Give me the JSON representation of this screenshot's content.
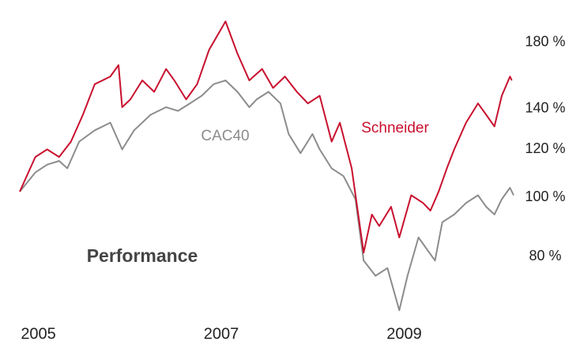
{
  "chart_data": {
    "type": "line",
    "title": "Performance",
    "y_log": true,
    "grid": false,
    "xlim": [
      2004.9,
      2010.3
    ],
    "xticks": [
      2005,
      2007,
      2009
    ],
    "ylim": [
      64,
      205
    ],
    "yticks": [
      {
        "value": 80,
        "label": "80 %"
      },
      {
        "value": 100,
        "label": "100 %"
      },
      {
        "value": 120,
        "label": "120 %"
      },
      {
        "value": 140,
        "label": "140 %"
      },
      {
        "value": 180,
        "label": "180 %"
      }
    ],
    "series": [
      {
        "name": "Schneider",
        "color": "#c8102e",
        "x": [
          2004.9,
          2005.07,
          2005.2,
          2005.33,
          2005.46,
          2005.59,
          2005.72,
          2005.89,
          2005.98,
          2006.02,
          2006.11,
          2006.24,
          2006.37,
          2006.5,
          2006.59,
          2006.72,
          2006.84,
          2006.97,
          2007.15,
          2007.28,
          2007.41,
          2007.55,
          2007.67,
          2007.8,
          2007.93,
          2008.05,
          2008.18,
          2008.31,
          2008.4,
          2008.53,
          2008.66,
          2008.75,
          2008.83,
          2008.96,
          2009.05,
          2009.18,
          2009.31,
          2009.39,
          2009.48,
          2009.57,
          2009.65,
          2009.78,
          2009.91,
          2010.0,
          2010.09,
          2010.17,
          2010.26,
          2010.28
        ],
        "values": [
          102.3,
          116.6,
          120.0,
          116.6,
          123.6,
          136.8,
          153.6,
          158.1,
          165.1,
          140.8,
          145.0,
          155.8,
          149.2,
          162.7,
          155.8,
          145.0,
          153.6,
          174.9,
          194.8,
          172.4,
          155.8,
          162.7,
          151.4,
          158.1,
          149.2,
          142.8,
          147.0,
          123.6,
          132.8,
          111.7,
          81.2,
          93.8,
          89.8,
          96.6,
          86.0,
          100.9,
          98.0,
          95.2,
          102.3,
          111.7,
          120.0,
          132.8,
          142.8,
          136.8,
          130.9,
          147.0,
          158.1,
          155.8
        ]
      },
      {
        "name": "CAC40",
        "color": "#8c8c8c",
        "x": [
          2004.9,
          2005.07,
          2005.2,
          2005.33,
          2005.42,
          2005.55,
          2005.72,
          2005.89,
          2006.02,
          2006.15,
          2006.33,
          2006.5,
          2006.63,
          2006.76,
          2006.89,
          2007.02,
          2007.15,
          2007.28,
          2007.41,
          2007.49,
          2007.62,
          2007.75,
          2007.84,
          2007.97,
          2008.1,
          2008.18,
          2008.31,
          2008.44,
          2008.57,
          2008.66,
          2008.79,
          2008.92,
          2009.05,
          2009.14,
          2009.26,
          2009.44,
          2009.52,
          2009.65,
          2009.78,
          2009.91,
          2010.0,
          2010.09,
          2010.17,
          2010.26,
          2010.3
        ],
        "values": [
          102.3,
          110.0,
          113.3,
          114.9,
          111.7,
          123.6,
          129.0,
          132.8,
          120.0,
          129.0,
          136.8,
          140.8,
          138.8,
          142.8,
          147.0,
          153.6,
          155.8,
          149.2,
          140.8,
          145.0,
          149.2,
          142.8,
          127.2,
          118.3,
          127.2,
          120.0,
          111.7,
          108.5,
          99.4,
          78.8,
          74.4,
          76.6,
          65.3,
          74.4,
          86.0,
          78.8,
          91.1,
          93.8,
          98.0,
          100.9,
          96.6,
          93.8,
          99.4,
          103.8,
          100.9
        ]
      }
    ]
  }
}
